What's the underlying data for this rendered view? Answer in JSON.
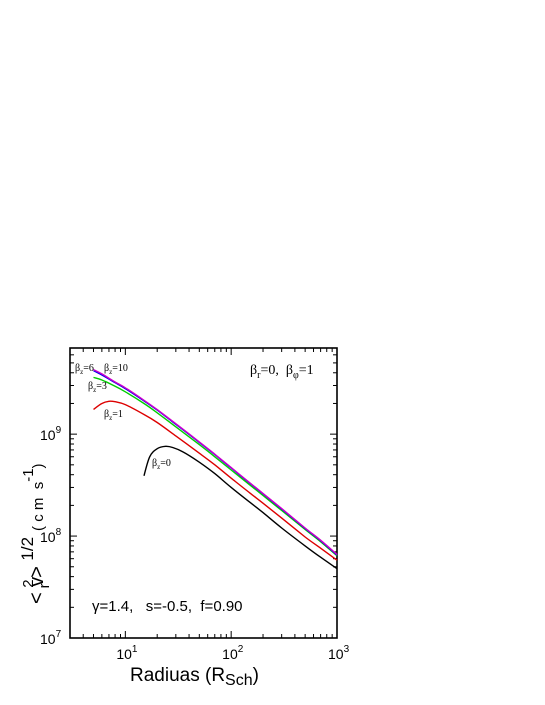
{
  "chart_data": {
    "type": "line",
    "title": "",
    "xlabel": "Radiuas (R",
    "xlabel_sub": "Sch",
    "xlabel_close": ")",
    "ylabel": {
      "open": "< v",
      "sub": "r",
      "sup": "2",
      "close": " > ",
      "power": "1/2",
      "units": "( c m  s",
      "units_sup": "-1",
      "units_close": ")"
    },
    "x_scale": "log",
    "y_scale": "log",
    "xlim": [
      3,
      1000
    ],
    "ylim": [
      10000000,
      7000000000
    ],
    "x_ticks": [
      {
        "value": 10,
        "base": "10",
        "exp": "1"
      },
      {
        "value": 100,
        "base": "10",
        "exp": "2"
      },
      {
        "value": 1000,
        "base": "10",
        "exp": "3"
      }
    ],
    "y_ticks": [
      {
        "value": 10000000,
        "base": "10",
        "exp": "7"
      },
      {
        "value": 100000000,
        "base": "10",
        "exp": "8"
      },
      {
        "value": 1000000000,
        "base": "10",
        "exp": "9"
      }
    ],
    "grid": false,
    "annotations": {
      "top_right": {
        "b1": "β",
        "s1": "r",
        "v1": "=0,  ",
        "b2": "β",
        "s2": "φ",
        "v2": "=1"
      },
      "bottom": "γ=1.4,   s=-0.5,  f=0.90"
    },
    "series": [
      {
        "name": "βz=0",
        "label_base": "β",
        "label_sub": "z",
        "label_val": "=0",
        "color": "#000000",
        "x": [
          15,
          17,
          20,
          24,
          28,
          35,
          50,
          70,
          100,
          150,
          200,
          300,
          500,
          700,
          1000
        ],
        "y": [
          390000000,
          600000000,
          720000000,
          760000000,
          740000000,
          670000000,
          530000000,
          410000000,
          300000000,
          215000000,
          170000000,
          120000000,
          80000000,
          62000000,
          48000000
        ]
      },
      {
        "name": "βz=1",
        "label_base": "β",
        "label_sub": "z",
        "label_val": "=1",
        "color": "#dd0000",
        "x": [
          5,
          6,
          7,
          8,
          10,
          15,
          20,
          30,
          50,
          70,
          100,
          150,
          200,
          300,
          500,
          700,
          1000
        ],
        "y": [
          1750000000,
          2000000000,
          2100000000,
          2080000000,
          1950000000,
          1560000000,
          1300000000,
          960000000,
          650000000,
          500000000,
          370000000,
          265000000,
          210000000,
          150000000,
          98000000,
          76000000,
          58000000
        ]
      },
      {
        "name": "βz=3",
        "label_base": "β",
        "label_sub": "z",
        "label_val": "=3",
        "color": "#00cc00",
        "x": [
          5,
          6,
          8,
          10,
          15,
          20,
          30,
          50,
          70,
          100,
          150,
          200,
          300,
          500,
          700,
          1000
        ],
        "y": [
          3600000000,
          3400000000,
          2950000000,
          2600000000,
          2000000000,
          1620000000,
          1180000000,
          790000000,
          600000000,
          445000000,
          318000000,
          250000000,
          178000000,
          116000000,
          88000000,
          64000000
        ]
      },
      {
        "name": "βz=6",
        "label_base": "β",
        "label_sub": "z",
        "label_val": "=6",
        "color": "#0000ee",
        "x": [
          5,
          6,
          8,
          10,
          15,
          20,
          30,
          50,
          70,
          100,
          150,
          200,
          300,
          500,
          700,
          1000
        ],
        "y": [
          4200000000,
          3800000000,
          3200000000,
          2800000000,
          2120000000,
          1720000000,
          1250000000,
          830000000,
          630000000,
          465000000,
          330000000,
          260000000,
          184000000,
          119000000,
          90000000,
          65000000
        ]
      },
      {
        "name": "βz=10",
        "label_base": "β",
        "label_sub": "z",
        "label_val": "=10",
        "color": "#cc00cc",
        "x": [
          5,
          6,
          8,
          10,
          15,
          20,
          30,
          50,
          70,
          100,
          150,
          200,
          300,
          500,
          700,
          1000
        ],
        "y": [
          4300000000,
          3900000000,
          3250000000,
          2850000000,
          2150000000,
          1740000000,
          1265000000,
          840000000,
          635000000,
          470000000,
          333000000,
          262000000,
          186000000,
          120000000,
          91000000,
          66000000
        ]
      }
    ]
  }
}
